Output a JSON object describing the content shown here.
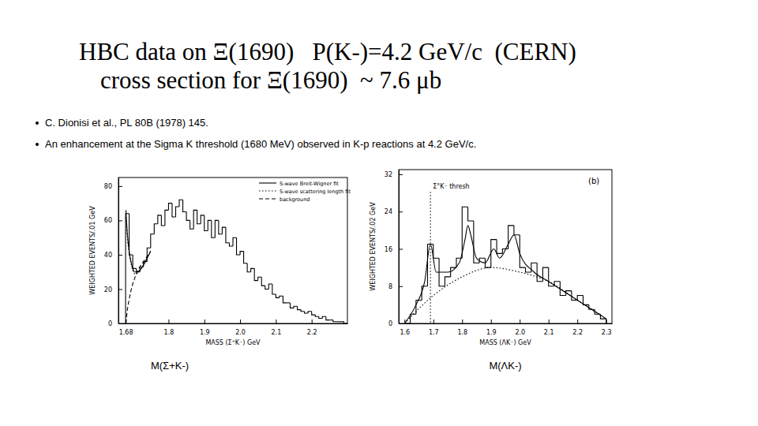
{
  "slide": {
    "title": [
      "HBC data on Ξ(1690)   P(K-)=4.2 GeV/c  (CERN)",
      "cross section for Ξ(1690)  ~ 7.6 μb"
    ],
    "bullets": [
      "C. Dionisi et al., PL 80B (1978) 145.",
      "An enhancement at the Sigma K threshold (1680 MeV) observed in K-p reactions at 4.2 GeV/c."
    ]
  },
  "chart_data": [
    {
      "type": "histogram",
      "caption": "M(Σ+K-)",
      "xlabel": "MASS (Σ⁺K⁻) GeV",
      "ylabel": "WEIGHTED EVENTS/.01 GeV",
      "color": "#000000",
      "legend": "upper right",
      "xlim": [
        1.66,
        2.3
      ],
      "ylim": [
        0,
        85
      ],
      "xticks": [
        1.68,
        1.8,
        1.9,
        {
          "value": 2,
          "label": "2.0"
        },
        2.1,
        2.2
      ],
      "yticks": [
        0,
        20,
        40,
        60,
        80
      ],
      "bins": [
        1.68,
        1.69,
        1.7,
        1.71,
        1.72,
        1.73,
        1.74,
        1.75,
        1.76,
        1.77,
        1.78,
        1.79,
        1.8,
        1.81,
        1.82,
        1.83,
        1.84,
        1.85,
        1.86,
        1.87,
        1.88,
        1.89,
        1.9,
        1.91,
        1.92,
        1.93,
        1.94,
        1.95,
        1.96,
        1.97,
        1.98,
        1.99,
        2.0,
        2.01,
        2.02,
        2.03,
        2.04,
        2.05,
        2.06,
        2.07,
        2.08,
        2.09,
        2.1,
        2.11,
        2.12,
        2.13,
        2.14,
        2.15,
        2.16,
        2.17,
        2.18,
        2.19,
        2.2,
        2.21,
        2.22,
        2.23,
        2.24,
        2.25,
        2.26,
        2.27,
        2.28,
        2.29,
        2.3
      ],
      "counts": [
        64,
        40,
        32,
        30,
        33,
        36,
        44,
        52,
        58,
        63,
        57,
        66,
        70,
        62,
        68,
        72,
        65,
        60,
        55,
        66,
        58,
        63,
        54,
        60,
        50,
        60,
        52,
        56,
        47,
        45,
        50,
        40,
        42,
        35,
        30,
        32,
        25,
        27,
        22,
        20,
        23,
        17,
        15,
        16,
        12,
        12,
        9,
        10,
        8,
        7,
        6,
        7,
        5,
        4,
        3,
        4,
        2,
        2,
        1,
        1,
        1,
        0
      ],
      "series": [
        {
          "name": "S-wave Breit-Wigner fit",
          "type": "line",
          "line_style": "solid",
          "color": "#000000",
          "x": [
            1.681,
            1.685,
            1.69,
            1.695,
            1.7,
            1.705,
            1.71,
            1.72,
            1.73,
            1.74,
            1.75
          ],
          "values": [
            66,
            52,
            42,
            36,
            32,
            30,
            30,
            31,
            34,
            38,
            42
          ]
        },
        {
          "name": "S-wave scattering length fit",
          "type": "line",
          "line_style": "dotted",
          "color": "#000000",
          "x": [
            1.681,
            1.685,
            1.69,
            1.695,
            1.7,
            1.705,
            1.71,
            1.72,
            1.73,
            1.74,
            1.75
          ],
          "values": [
            62,
            50,
            41,
            35,
            31,
            29,
            29,
            31,
            34,
            38,
            42
          ]
        },
        {
          "name": "background",
          "type": "line",
          "line_style": "dashed",
          "color": "#000000",
          "x": [
            1.681,
            1.685,
            1.69,
            1.695,
            1.7,
            1.705,
            1.71,
            1.72,
            1.73,
            1.74,
            1.75
          ],
          "values": [
            0,
            8,
            14,
            19,
            23,
            26,
            29,
            33,
            36,
            39,
            42
          ]
        }
      ]
    },
    {
      "type": "histogram",
      "caption": "M(ΛK-)",
      "xlabel": "MASS (ΛK⁻) GeV",
      "ylabel": "WEIGHTED EVENTS/.02 GeV",
      "color": "#000000",
      "xlim": [
        1.58,
        2.32
      ],
      "ylim": [
        0,
        33
      ],
      "xticks": [
        1.6,
        1.7,
        1.8,
        1.9,
        {
          "value": 2,
          "label": "2.0"
        },
        2.1,
        2.2,
        2.3
      ],
      "yticks": [
        0,
        8,
        16,
        24,
        32
      ],
      "bins": [
        1.6,
        1.62,
        1.64,
        1.66,
        1.68,
        1.7,
        1.72,
        1.74,
        1.76,
        1.78,
        1.8,
        1.82,
        1.84,
        1.86,
        1.88,
        1.9,
        1.92,
        1.94,
        1.96,
        1.98,
        2.0,
        2.02,
        2.04,
        2.06,
        2.08,
        2.1,
        2.12,
        2.14,
        2.16,
        2.18,
        2.2,
        2.22,
        2.24,
        2.26,
        2.28,
        2.3
      ],
      "counts": [
        0,
        2,
        5,
        8,
        17,
        14,
        8,
        10,
        12,
        14,
        25,
        22,
        13,
        14,
        12,
        18,
        15,
        16,
        21,
        19,
        12,
        11,
        13,
        9,
        12,
        8,
        9,
        6,
        7,
        5,
        6,
        4,
        3,
        2,
        1
      ],
      "annotations": [
        {
          "text": "Σ°K⁻ thresh",
          "x": 1.69
        },
        {
          "text": "(b)"
        }
      ],
      "series": [
        {
          "type": "line",
          "line_style": "solid",
          "color": "#000000",
          "x": [
            1.6,
            1.64,
            1.67,
            1.69,
            1.71,
            1.75,
            1.79,
            1.81,
            1.82,
            1.83,
            1.85,
            1.88,
            1.91,
            1.93,
            1.96,
            1.98,
            2.0,
            2.05,
            2.1,
            2.2,
            2.3
          ],
          "values": [
            0,
            4,
            9,
            17,
            11,
            11,
            13,
            18,
            21,
            19,
            14,
            13,
            16,
            14,
            17,
            19,
            15,
            11,
            9,
            5,
            1
          ]
        },
        {
          "type": "line",
          "line_style": "dotted",
          "color": "#000000",
          "x": [
            1.6,
            1.7,
            1.8,
            1.9,
            2.0,
            2.1,
            2.2,
            2.3
          ],
          "values": [
            0,
            6,
            10,
            12,
            11,
            9,
            5,
            1
          ]
        }
      ]
    }
  ]
}
